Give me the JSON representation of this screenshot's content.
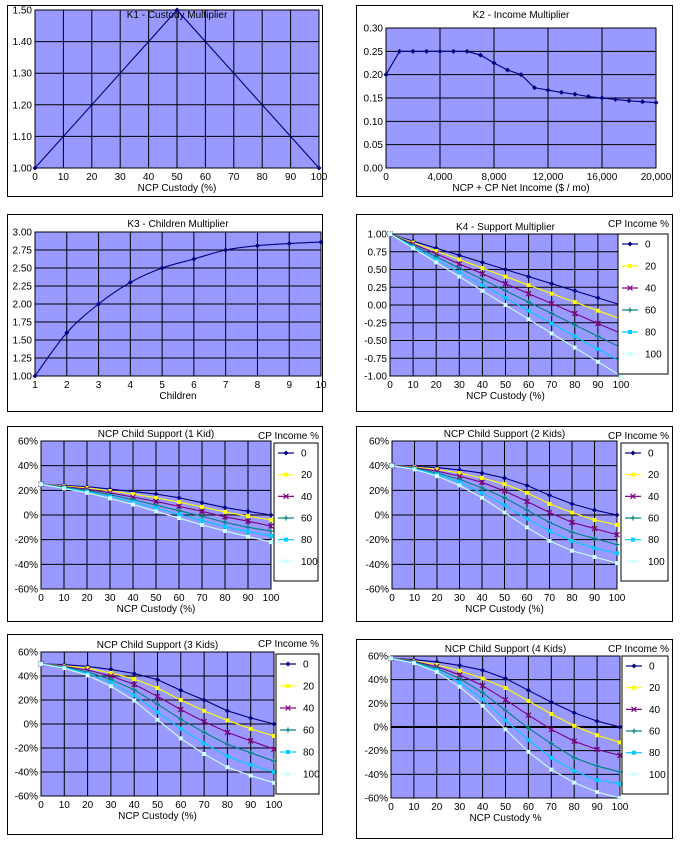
{
  "colors": {
    "plot_bg": "#9999ff",
    "grid": "#000000",
    "series": [
      "#000080",
      "#ffff00",
      "#800080",
      "#008080",
      "#00ccff",
      "#ccffff"
    ]
  },
  "chart_data": [
    {
      "id": "k1",
      "type": "line",
      "title": "K1 - Custody Multiplier",
      "xlabel": "NCP Custody (%)",
      "xlim": [
        0,
        100
      ],
      "ylim": [
        1.0,
        1.5
      ],
      "xticks": [
        0,
        10,
        20,
        30,
        40,
        50,
        60,
        70,
        80,
        90,
        100
      ],
      "xtick_labels": [
        "0",
        "10",
        "20",
        "30",
        "40",
        "50",
        "60",
        "70",
        "80",
        "90",
        "100"
      ],
      "yticks": [
        1.0,
        1.1,
        1.2,
        1.3,
        1.4,
        1.5
      ],
      "ytick_labels": [
        "1.00",
        "1.10",
        "1.20",
        "1.30",
        "1.40",
        "1.50"
      ],
      "series": [
        {
          "x": [
            0,
            50,
            100
          ],
          "values": [
            1.0,
            1.5,
            1.0
          ]
        }
      ]
    },
    {
      "id": "k2",
      "type": "line",
      "title": "K2 - Income Multiplier",
      "xlabel": "NCP + CP Net Income ($ / mo)",
      "xlim": [
        0,
        20000
      ],
      "ylim": [
        0,
        0.3
      ],
      "xticks": [
        0,
        4000,
        8000,
        12000,
        16000,
        20000
      ],
      "xtick_labels": [
        "0",
        "4,000",
        "8,000",
        "12,000",
        "16,000",
        "20,000"
      ],
      "yticks": [
        0,
        0.05,
        0.1,
        0.15,
        0.2,
        0.25,
        0.3
      ],
      "ytick_labels": [
        "0.00",
        "0.05",
        "0.10",
        "0.15",
        "0.20",
        "0.25",
        "0.30"
      ],
      "series": [
        {
          "x": [
            0,
            1000,
            2000,
            3000,
            4000,
            5000,
            6000,
            7000,
            8000,
            9000,
            10000,
            11000,
            12000,
            13000,
            14000,
            15000,
            16000,
            17000,
            18000,
            19000,
            20000
          ],
          "values": [
            0.2,
            0.25,
            0.25,
            0.25,
            0.25,
            0.25,
            0.25,
            0.242,
            0.225,
            0.21,
            0.2,
            0.172,
            0.167,
            0.162,
            0.158,
            0.153,
            0.15,
            0.147,
            0.144,
            0.142,
            0.14
          ]
        }
      ]
    },
    {
      "id": "k3",
      "type": "line",
      "title": "K3 - Children Multiplier",
      "xlabel": "Children",
      "xlim": [
        1,
        10
      ],
      "ylim": [
        1.0,
        3.0
      ],
      "xticks": [
        1,
        2,
        3,
        4,
        5,
        6,
        7,
        8,
        9,
        10
      ],
      "xtick_labels": [
        "1",
        "2",
        "3",
        "4",
        "5",
        "6",
        "7",
        "8",
        "9",
        "10"
      ],
      "yticks": [
        1.0,
        1.25,
        1.5,
        1.75,
        2.0,
        2.25,
        2.5,
        2.75,
        3.0
      ],
      "ytick_labels": [
        "1.00",
        "1.25",
        "1.50",
        "1.75",
        "2.00",
        "2.25",
        "2.50",
        "2.75",
        "3.00"
      ],
      "series": [
        {
          "x": [
            1,
            2,
            3,
            4,
            5,
            6,
            7,
            8,
            9,
            10
          ],
          "values": [
            1.0,
            1.6,
            2.0,
            2.3,
            2.5,
            2.625,
            2.75,
            2.81,
            2.84,
            2.86
          ]
        }
      ]
    },
    {
      "id": "k4",
      "type": "line",
      "title": "K4 - Support Multiplier",
      "xlabel": "NCP Custody (%)",
      "legend_title": "CP Income %",
      "xlim": [
        0,
        100
      ],
      "ylim": [
        -1.0,
        1.0
      ],
      "x": [
        0,
        10,
        20,
        30,
        40,
        50,
        60,
        70,
        80,
        90,
        100
      ],
      "xticks": [
        0,
        10,
        20,
        30,
        40,
        50,
        60,
        70,
        80,
        90,
        100
      ],
      "xtick_labels": [
        "0",
        "10",
        "20",
        "30",
        "40",
        "50",
        "60",
        "70",
        "80",
        "90",
        "100"
      ],
      "yticks": [
        -1.0,
        -0.75,
        -0.5,
        -0.25,
        0,
        0.25,
        0.5,
        0.75,
        1.0
      ],
      "ytick_labels": [
        "-1.00",
        "-0.75",
        "-0.50",
        "-0.25",
        "0.00",
        "0.25",
        "0.50",
        "0.75",
        "1.00"
      ],
      "series": [
        {
          "name": "0",
          "values": [
            1.0,
            0.9,
            0.8,
            0.7,
            0.6,
            0.5,
            0.4,
            0.3,
            0.2,
            0.1,
            0.0
          ]
        },
        {
          "name": "20",
          "values": [
            1.0,
            0.88,
            0.76,
            0.64,
            0.52,
            0.4,
            0.28,
            0.16,
            0.04,
            -0.08,
            -0.2
          ]
        },
        {
          "name": "40",
          "values": [
            1.0,
            0.86,
            0.72,
            0.58,
            0.44,
            0.3,
            0.16,
            0.02,
            -0.12,
            -0.26,
            -0.4
          ]
        },
        {
          "name": "60",
          "values": [
            1.0,
            0.84,
            0.68,
            0.52,
            0.36,
            0.2,
            0.04,
            -0.12,
            -0.28,
            -0.44,
            -0.6
          ]
        },
        {
          "name": "80",
          "values": [
            1.0,
            0.82,
            0.64,
            0.46,
            0.28,
            0.1,
            -0.08,
            -0.26,
            -0.44,
            -0.62,
            -0.8
          ]
        },
        {
          "name": "100",
          "values": [
            1.0,
            0.8,
            0.6,
            0.4,
            0.2,
            0.0,
            -0.2,
            -0.4,
            -0.6,
            -0.8,
            -1.0
          ]
        }
      ]
    },
    {
      "id": "kid1",
      "type": "line",
      "title": "NCP Child Support (1 Kid)",
      "xlabel": "NCP Custody (%)",
      "legend_title": "CP Income %",
      "xlim": [
        0,
        100
      ],
      "ylim": [
        -60,
        60
      ],
      "x": [
        0,
        10,
        20,
        30,
        40,
        50,
        60,
        70,
        80,
        90,
        100
      ],
      "xticks": [
        0,
        10,
        20,
        30,
        40,
        50,
        60,
        70,
        80,
        90,
        100
      ],
      "xtick_labels": [
        "0",
        "10",
        "20",
        "30",
        "40",
        "50",
        "60",
        "70",
        "80",
        "90",
        "100"
      ],
      "yticks": [
        -60,
        -40,
        -20,
        0,
        20,
        40,
        60
      ],
      "ytick_labels": [
        "-60%",
        "-40%",
        "-20%",
        "0%",
        "20%",
        "40%",
        "60%"
      ],
      "series": [
        {
          "name": "0",
          "values": [
            25,
            24,
            23,
            21,
            19,
            17,
            14,
            10,
            6,
            3,
            0
          ]
        },
        {
          "name": "20",
          "values": [
            25,
            23.5,
            22,
            19.5,
            17,
            14,
            10.5,
            6.5,
            2.5,
            -1,
            -4
          ]
        },
        {
          "name": "40",
          "values": [
            25,
            23,
            21,
            18,
            14.5,
            11,
            7,
            3,
            -1.5,
            -5,
            -9
          ]
        },
        {
          "name": "60",
          "values": [
            25,
            22.5,
            20,
            16.5,
            12.5,
            8,
            3.5,
            -1,
            -6,
            -10,
            -13
          ]
        },
        {
          "name": "80",
          "values": [
            25,
            22,
            19,
            15,
            10.5,
            5.5,
            0.5,
            -4.5,
            -9.5,
            -13.5,
            -17
          ]
        },
        {
          "name": "100",
          "values": [
            25,
            21.5,
            18,
            13.5,
            8.5,
            3,
            -2.5,
            -8,
            -13,
            -17.5,
            -22
          ]
        }
      ]
    },
    {
      "id": "kid2",
      "type": "line",
      "title": "NCP Child Support (2 Kids)",
      "xlabel": "NCP Custody (%)",
      "legend_title": "CP Income %",
      "xlim": [
        0,
        100
      ],
      "ylim": [
        -60,
        60
      ],
      "x": [
        0,
        10,
        20,
        30,
        40,
        50,
        60,
        70,
        80,
        90,
        100
      ],
      "xticks": [
        0,
        10,
        20,
        30,
        40,
        50,
        60,
        70,
        80,
        90,
        100
      ],
      "xtick_labels": [
        "0",
        "10",
        "20",
        "30",
        "40",
        "50",
        "60",
        "70",
        "80",
        "90",
        "100"
      ],
      "yticks": [
        -60,
        -40,
        -20,
        0,
        20,
        40,
        60
      ],
      "ytick_labels": [
        "-60%",
        "-40%",
        "-20%",
        "0%",
        "20%",
        "40%",
        "60%"
      ],
      "series": [
        {
          "name": "0",
          "values": [
            40,
            39.5,
            38.5,
            36.5,
            34,
            30,
            24,
            16,
            9,
            4,
            0
          ]
        },
        {
          "name": "20",
          "values": [
            40,
            39,
            37,
            34,
            30,
            25,
            18,
            9,
            2,
            -4,
            -8
          ]
        },
        {
          "name": "40",
          "values": [
            40,
            38.5,
            35.5,
            31.5,
            26.5,
            19.5,
            11,
            2,
            -6,
            -11,
            -16
          ]
        },
        {
          "name": "60",
          "values": [
            40,
            38,
            34,
            29,
            22,
            14,
            4,
            -6,
            -14,
            -19,
            -24
          ]
        },
        {
          "name": "80",
          "values": [
            40,
            37.5,
            33,
            26.5,
            18,
            8,
            -3,
            -13,
            -21,
            -27,
            -31
          ]
        },
        {
          "name": "100",
          "values": [
            40,
            37,
            31.5,
            24,
            14,
            2,
            -10,
            -21,
            -29,
            -34,
            -39
          ]
        }
      ]
    },
    {
      "id": "kid3",
      "type": "line",
      "title": "NCP Child Support (3 Kids)",
      "xlabel": "NCP Custody (%)",
      "legend_title": "CP Income %",
      "xlim": [
        0,
        100
      ],
      "ylim": [
        -60,
        60
      ],
      "x": [
        0,
        10,
        20,
        30,
        40,
        50,
        60,
        70,
        80,
        90,
        100
      ],
      "xticks": [
        0,
        10,
        20,
        30,
        40,
        50,
        60,
        70,
        80,
        90,
        100
      ],
      "xtick_labels": [
        "0",
        "10",
        "20",
        "30",
        "40",
        "50",
        "60",
        "70",
        "80",
        "90",
        "100"
      ],
      "yticks": [
        -60,
        -40,
        -20,
        0,
        20,
        40,
        60
      ],
      "ytick_labels": [
        "-60%",
        "-40%",
        "-20%",
        "0%",
        "20%",
        "40%",
        "60%"
      ],
      "series": [
        {
          "name": "0",
          "values": [
            50,
            49.5,
            48,
            45.5,
            42,
            37,
            28,
            20,
            11,
            5,
            0
          ]
        },
        {
          "name": "20",
          "values": [
            50,
            48.5,
            46.5,
            42.5,
            37.5,
            30,
            20,
            11,
            3,
            -4,
            -10
          ]
        },
        {
          "name": "40",
          "values": [
            50,
            48,
            45,
            40,
            33,
            23,
            12,
            2,
            -7,
            -14,
            -21
          ]
        },
        {
          "name": "60",
          "values": [
            50,
            47.5,
            43.5,
            37,
            28.5,
            16.5,
            4,
            -7,
            -17,
            -24,
            -31
          ]
        },
        {
          "name": "80",
          "values": [
            50,
            47,
            42,
            34.5,
            24,
            10,
            -4,
            -16,
            -27,
            -34,
            -40
          ]
        },
        {
          "name": "100",
          "values": [
            50,
            46.5,
            40.5,
            31.5,
            19.5,
            3.5,
            -12,
            -25,
            -36,
            -43,
            -49
          ]
        }
      ]
    },
    {
      "id": "kid4",
      "type": "line",
      "title": "NCP Child Support (4 Kids)",
      "xlabel": "NCP Custody %",
      "legend_title": "CP Income %",
      "xlim": [
        0,
        100
      ],
      "ylim": [
        -60,
        60
      ],
      "x": [
        0,
        10,
        20,
        30,
        40,
        50,
        60,
        70,
        80,
        90,
        100
      ],
      "xticks": [
        0,
        10,
        20,
        30,
        40,
        50,
        60,
        70,
        80,
        90,
        100
      ],
      "xtick_labels": [
        "0",
        "10",
        "20",
        "30",
        "40",
        "50",
        "60",
        "70",
        "80",
        "90",
        "100"
      ],
      "yticks": [
        -60,
        -40,
        -20,
        0,
        20,
        40,
        60
      ],
      "ytick_labels": [
        "-60%",
        "-40%",
        "-20%",
        "0%",
        "20%",
        "40%",
        "60%"
      ],
      "series": [
        {
          "name": "0",
          "values": [
            58,
            57,
            55,
            52,
            48,
            41,
            31,
            21,
            12,
            5,
            0
          ]
        },
        {
          "name": "20",
          "values": [
            58,
            56,
            52.5,
            47.5,
            41,
            33,
            22,
            11,
            1,
            -7,
            -13
          ]
        },
        {
          "name": "40",
          "values": [
            58,
            55.5,
            51,
            44,
            35,
            23,
            10,
            -2,
            -12,
            -19,
            -24
          ]
        },
        {
          "name": "60",
          "values": [
            58,
            55,
            49.5,
            41,
            29,
            14,
            -1,
            -14,
            -26,
            -33,
            -38
          ]
        },
        {
          "name": "80",
          "values": [
            58,
            54.5,
            48,
            37.5,
            23.5,
            5.5,
            -11,
            -26,
            -37,
            -45,
            -48
          ]
        },
        {
          "name": "100",
          "values": [
            58,
            54,
            46.5,
            34,
            18,
            -2,
            -21,
            -36,
            -47,
            -55,
            -60
          ]
        }
      ]
    }
  ]
}
